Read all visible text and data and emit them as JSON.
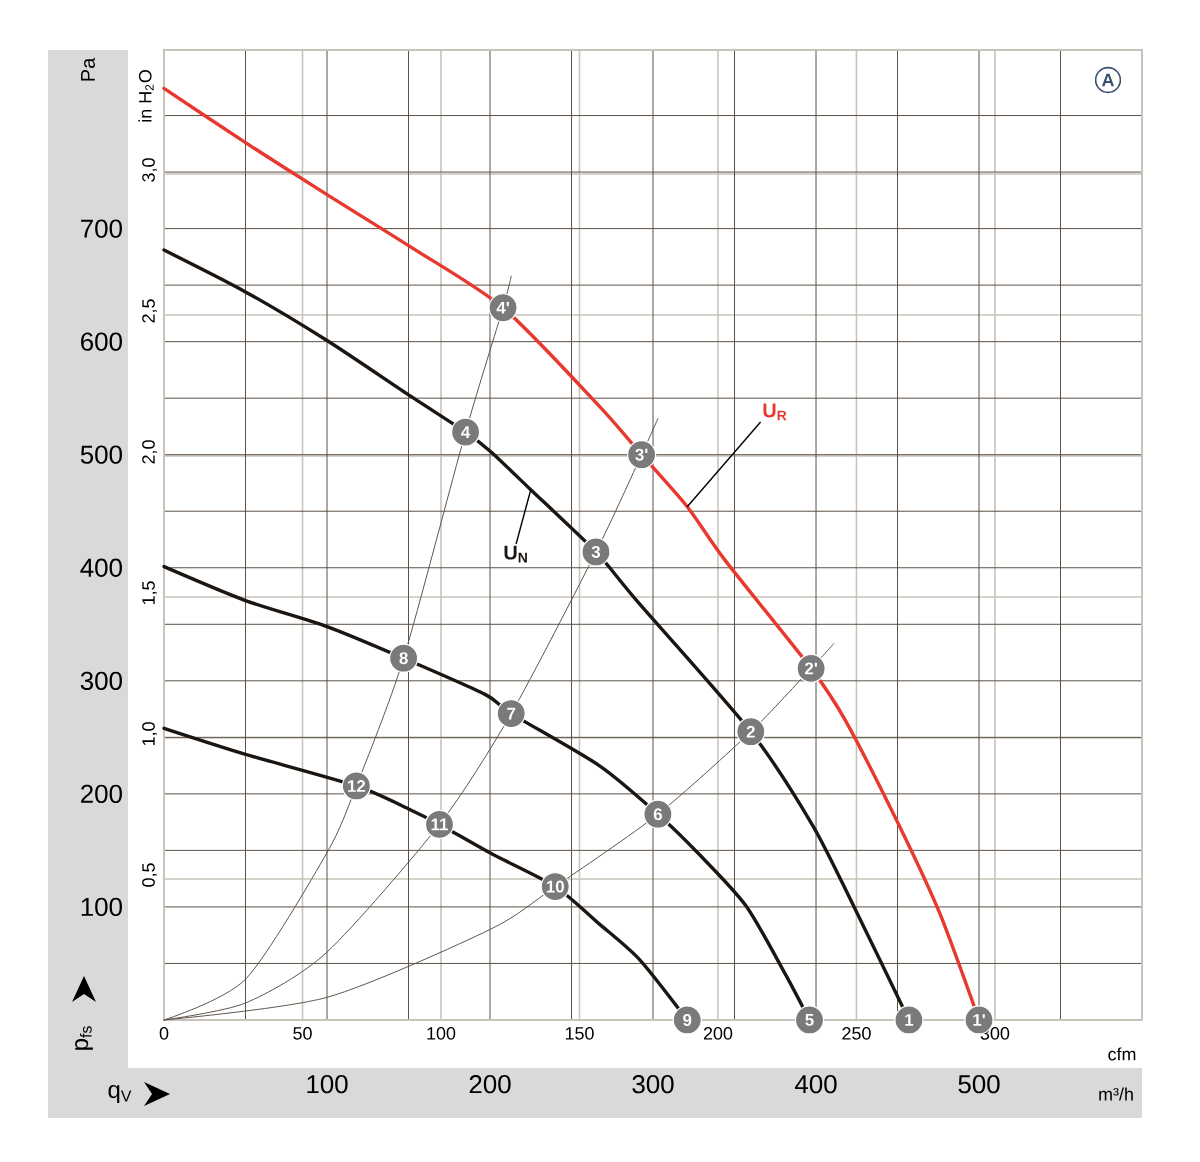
{
  "chart_data": {
    "type": "line",
    "xlabel": "m³/h",
    "ylabel": "Pa",
    "x2label": "cfm",
    "y2label": "in H$_{2}$O",
    "xlim": [
      0,
      600
    ],
    "ylim": [
      0,
      858
    ],
    "x2lim": [
      0,
      353.1
    ],
    "y2lim": [
      0,
      3.44
    ],
    "xticks": [
      {
        "value": 50,
        "label": null
      },
      100,
      {
        "value": 150,
        "label": null
      },
      200,
      {
        "value": 250,
        "label": null
      },
      300,
      {
        "value": 350,
        "label": null
      },
      400,
      {
        "value": 450,
        "label": null
      },
      500,
      {
        "value": 550,
        "label": null
      }
    ],
    "yticks": [
      {
        "value": 50,
        "label": null
      },
      100,
      {
        "value": 150,
        "label": null
      },
      200,
      {
        "value": 250,
        "label": null
      },
      300,
      {
        "value": 350,
        "label": null
      },
      400,
      {
        "value": 450,
        "label": null
      },
      500,
      {
        "value": 550,
        "label": null
      },
      600,
      {
        "value": 650,
        "label": null
      },
      700,
      {
        "value": 750,
        "label": null
      },
      {
        "value": 800,
        "label": null
      }
    ],
    "x2ticks": [
      0,
      50,
      100,
      150,
      200,
      250,
      300
    ],
    "y2ticks": [
      {
        "value": 0.5,
        "label": "0,5"
      },
      {
        "value": 1.0,
        "label": "1,0"
      },
      {
        "value": 1.5,
        "label": "1,5"
      },
      {
        "value": 2.0,
        "label": "2,0"
      },
      {
        "value": 2.5,
        "label": "2,5"
      },
      {
        "value": 3.0,
        "label": "3,0"
      }
    ],
    "grid": true,
    "marker": "none",
    "line_style": "solid",
    "series": [
      {
        "name": "U$_{R}$",
        "color": "#e8392e",
        "x": [
          0,
          50,
          100,
          151,
          208,
          267,
          293,
          321,
          344,
          397,
          418,
          451,
          476,
          500
        ],
        "values": [
          824,
          776,
          730,
          684,
          630,
          543,
          500,
          454,
          407,
          311,
          265,
          172,
          94,
          0
        ]
      },
      {
        "name": "U$_{N}$",
        "color": "#1c1612",
        "x": [
          0,
          50,
          100,
          151,
          185,
          201,
          225,
          265,
          290,
          360,
          398,
          423,
          457
        ],
        "values": [
          681,
          644,
          601,
          552,
          520,
          502,
          469,
          414,
          371,
          255,
          172,
          101,
          0
        ]
      },
      {
        "color": "#1c1612",
        "x": [
          0,
          50,
          100,
          147,
          197,
          213,
          267,
          303,
          328,
          357,
          381,
          396
        ],
        "values": [
          401,
          371,
          348,
          320,
          288,
          271,
          225,
          182,
          147,
          101,
          41,
          0
        ]
      },
      {
        "color": "#1c1612",
        "x": [
          0,
          50,
          118,
          151,
          169,
          201,
          240,
          267,
          292,
          321
        ],
        "values": [
          258,
          235,
          207,
          186,
          173,
          147,
          118,
          85,
          53,
          0
        ]
      },
      {
        "color": "#5e554c",
        "x": [
          0,
          50,
          100,
          118,
          147,
          185,
          208,
          213
        ],
        "values": [
          0,
          36,
          148,
          207,
          320,
          520,
          630,
          658
        ]
      },
      {
        "color": "#5e554c",
        "x": [
          0,
          50,
          100,
          169,
          213,
          265,
          293,
          303
        ],
        "values": [
          0,
          15,
          60,
          173,
          271,
          414,
          500,
          532
        ]
      },
      {
        "color": "#5e554c",
        "x": [
          0,
          100,
          200,
          240,
          303,
          360,
          397,
          411
        ],
        "values": [
          0,
          20,
          80,
          118,
          182,
          255,
          311,
          333
        ]
      }
    ],
    "annotations": [
      "p$_{fs}$",
      "q$_{V}$",
      "A",
      {
        "text": "1",
        "x": 457,
        "y": 0
      },
      {
        "text": "1'",
        "x": 500,
        "y": 0
      },
      {
        "text": "2",
        "x": 360,
        "y": 255
      },
      {
        "text": "2'",
        "x": 397,
        "y": 311
      },
      {
        "text": "3",
        "x": 265,
        "y": 414
      },
      {
        "text": "3'",
        "x": 293,
        "y": 500
      },
      {
        "text": "4",
        "x": 185,
        "y": 520
      },
      {
        "text": "4'",
        "x": 208,
        "y": 630
      },
      {
        "text": "5",
        "x": 396,
        "y": 0
      },
      {
        "text": "6",
        "x": 303,
        "y": 182
      },
      {
        "text": "7",
        "x": 213,
        "y": 271
      },
      {
        "text": "8",
        "x": 147,
        "y": 320
      },
      {
        "text": "9",
        "x": 321,
        "y": 0
      },
      {
        "text": "10",
        "x": 240,
        "y": 118
      },
      {
        "text": "11",
        "x": 169,
        "y": 173
      },
      {
        "text": "12",
        "x": 118,
        "y": 207
      }
    ]
  }
}
